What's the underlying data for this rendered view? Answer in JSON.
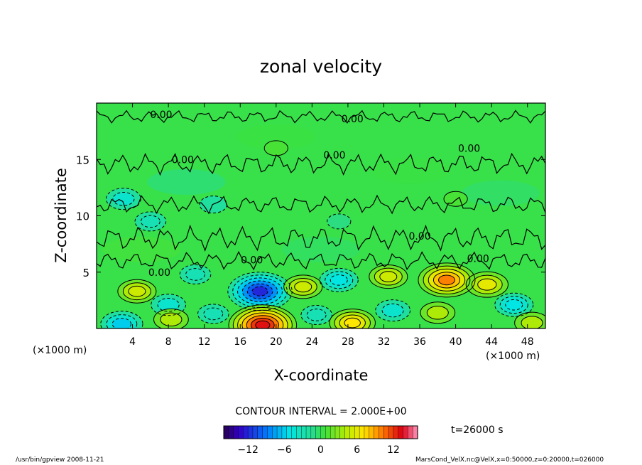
{
  "chart_data": {
    "type": "heatmap",
    "title": "zonal velocity",
    "xlabel": "X-coordinate",
    "ylabel": "Z-coordinate",
    "x_unit_left": "(×1000 m)",
    "x_unit_right": "(×1000 m)",
    "xlim": [
      0,
      50
    ],
    "ylim": [
      0,
      20
    ],
    "x_ticks": [
      4,
      8,
      12,
      16,
      20,
      24,
      28,
      32,
      36,
      40,
      44,
      48
    ],
    "y_ticks": [
      5,
      10,
      15
    ],
    "contour_interval_label": "CONTOUR INTERVAL = 2.000E+00",
    "time_label": "t=26000 s",
    "colorbar": {
      "min": -16,
      "max": 16,
      "ticks": [
        -12,
        -6,
        0,
        6,
        12
      ]
    },
    "contour_labels": [
      {
        "text": "0.00",
        "x": 7.2,
        "y": 19.0
      },
      {
        "text": "0.00",
        "x": 28.5,
        "y": 18.6
      },
      {
        "text": "0.00",
        "x": 9.6,
        "y": 15.0
      },
      {
        "text": "0.00",
        "x": 26.5,
        "y": 15.4
      },
      {
        "text": "0.00",
        "x": 41.5,
        "y": 16.0
      },
      {
        "text": "0.00",
        "x": 36.0,
        "y": 8.2
      },
      {
        "text": "0.00",
        "x": 17.3,
        "y": 6.1
      },
      {
        "text": "0.00",
        "x": 42.5,
        "y": 6.2
      },
      {
        "text": "0.00",
        "x": 7.0,
        "y": 5.0
      }
    ],
    "anomalies": [
      {
        "x": 18.2,
        "y": 3.3,
        "value": -12
      },
      {
        "x": 18.5,
        "y": 0.3,
        "value": 13
      },
      {
        "x": 39.0,
        "y": 4.3,
        "value": 10
      },
      {
        "x": 43.5,
        "y": 3.9,
        "value": 6
      },
      {
        "x": 4.5,
        "y": 3.3,
        "value": 5
      },
      {
        "x": 23.0,
        "y": 3.7,
        "value": 5
      },
      {
        "x": 27.0,
        "y": 4.3,
        "value": -5
      },
      {
        "x": 32.5,
        "y": 4.6,
        "value": 5
      },
      {
        "x": 28.5,
        "y": 0.5,
        "value": 7
      },
      {
        "x": 2.8,
        "y": 0.4,
        "value": -6
      },
      {
        "x": 8.0,
        "y": 2.1,
        "value": -4
      },
      {
        "x": 33.0,
        "y": 1.6,
        "value": -4
      },
      {
        "x": 38.0,
        "y": 1.4,
        "value": 4
      },
      {
        "x": 46.5,
        "y": 2.1,
        "value": -5
      },
      {
        "x": 8.3,
        "y": 0.8,
        "value": 4
      },
      {
        "x": 13.0,
        "y": 1.3,
        "value": -3
      },
      {
        "x": 24.5,
        "y": 1.2,
        "value": -3
      },
      {
        "x": 48.5,
        "y": 0.5,
        "value": 4
      },
      {
        "x": 11.0,
        "y": 4.8,
        "value": -3
      },
      {
        "x": 3.0,
        "y": 11.5,
        "value": -4
      },
      {
        "x": 6.0,
        "y": 9.5,
        "value": -3
      },
      {
        "x": 13.0,
        "y": 11.0,
        "value": -2
      },
      {
        "x": 27.0,
        "y": 9.5,
        "value": -1
      },
      {
        "x": 20.0,
        "y": 16.0,
        "value": 1
      },
      {
        "x": 40.0,
        "y": 11.5,
        "value": 1
      }
    ]
  },
  "footer": {
    "left": "/usr/bin/gpview   2008-11-21",
    "right": "MarsCond_VelX.nc@VelX,x=0:50000,z=0:20000,t=026000"
  },
  "colors": {
    "background_field": "#3de040",
    "negative_extreme": "#3a0a7a",
    "positive_extreme": "#d8001e"
  }
}
